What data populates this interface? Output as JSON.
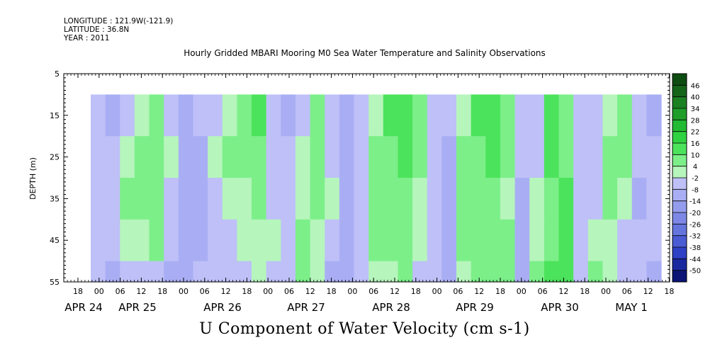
{
  "header": {
    "longitude": "LONGITUDE : 121.9W(-121.9)",
    "latitude": "LATITUDE : 36.8N",
    "year": "YEAR : 2011"
  },
  "chart_data": {
    "type": "heatmap",
    "title": "Hourly Gridded MBARI Mooring M0 Sea Water Temperature and Salinity Observations",
    "xlabel": "U Component of Water Velocity (cm s-1)",
    "ylabel": "DEPTH (m)",
    "y_ticks": [
      "5",
      "15",
      "25",
      "35",
      "45",
      "55"
    ],
    "ylim": [
      5,
      55
    ],
    "y_inverted": true,
    "hour_ticks": [
      "18",
      "00",
      "06",
      "12",
      "18",
      "00",
      "06",
      "12",
      "18",
      "00",
      "06",
      "12",
      "18",
      "00",
      "06",
      "12",
      "18",
      "00",
      "06",
      "12",
      "18",
      "00",
      "06",
      "12",
      "18",
      "00",
      "06",
      "12",
      "18",
      "00",
      "06",
      "12"
    ],
    "date_labels": [
      "APR 24",
      "APR 25",
      "APR 26",
      "APR 27",
      "APR 28",
      "APR 29",
      "APR 30",
      "MAY  1"
    ],
    "data_depth_range": [
      10,
      55
    ],
    "colorbar": {
      "levels": [
        "46",
        "40",
        "34",
        "28",
        "22",
        "16",
        "10",
        "4",
        "-2",
        "-8",
        "-14",
        "-20",
        "-26",
        "-32",
        "-38",
        "-44",
        "-50"
      ],
      "colors": [
        "#0e4d12",
        "#14641a",
        "#1b8022",
        "#1f9e2a",
        "#22bb33",
        "#2fd240",
        "#4ce35c",
        "#7cef89",
        "#b6f5bc",
        "#bec0f7",
        "#a9aef4",
        "#949ced",
        "#7d88e6",
        "#6575de",
        "#4a5cd4",
        "#2e40c4",
        "#1a28a0",
        "#0b1475"
      ]
    },
    "u_velocity_profile_by_column": {
      "description_of_values": "approximate U velocity (cm s-1) at each time column across depth bands 10-20,20-30,30-40,40-50,50-55 m",
      "columns": [
        [
          -8,
          -6,
          -4,
          -6,
          -8
        ],
        [
          -10,
          -8,
          -6,
          -8,
          -10
        ],
        [
          -8,
          -2,
          4,
          0,
          -6
        ],
        [
          2,
          6,
          4,
          -2,
          -8
        ],
        [
          4,
          8,
          6,
          4,
          -6
        ],
        [
          -4,
          -2,
          -6,
          -8,
          -10
        ],
        [
          -12,
          -14,
          -12,
          -10,
          -12
        ],
        [
          -8,
          -10,
          -12,
          -10,
          -8
        ],
        [
          -4,
          -2,
          -6,
          -8,
          -6
        ],
        [
          2,
          4,
          -2,
          -6,
          -8
        ],
        [
          8,
          6,
          2,
          -2,
          -6
        ],
        [
          10,
          6,
          4,
          2,
          -2
        ],
        [
          -6,
          -8,
          -4,
          -2,
          -4
        ],
        [
          -10,
          -8,
          -6,
          -4,
          -6
        ],
        [
          -4,
          -2,
          2,
          6,
          4
        ],
        [
          4,
          8,
          6,
          2,
          -2
        ],
        [
          -6,
          -4,
          -2,
          -6,
          -10
        ],
        [
          -10,
          -12,
          -14,
          -12,
          -10
        ],
        [
          -4,
          -6,
          -8,
          -6,
          -4
        ],
        [
          2,
          4,
          6,
          4,
          2
        ],
        [
          10,
          8,
          6,
          4,
          2
        ],
        [
          14,
          10,
          8,
          8,
          6
        ],
        [
          6,
          4,
          2,
          -2,
          -4
        ],
        [
          -4,
          -6,
          -8,
          -6,
          -4
        ],
        [
          -8,
          -10,
          -12,
          -12,
          -10
        ],
        [
          -2,
          4,
          6,
          6,
          2
        ],
        [
          10,
          8,
          8,
          6,
          6
        ],
        [
          14,
          10,
          8,
          6,
          4
        ],
        [
          6,
          4,
          2,
          4,
          6
        ],
        [
          -6,
          -8,
          -10,
          -12,
          -14
        ],
        [
          -4,
          -6,
          -2,
          2,
          6
        ],
        [
          12,
          10,
          8,
          8,
          10
        ],
        [
          4,
          6,
          10,
          12,
          12
        ],
        [
          -6,
          -4,
          -8,
          -6,
          -8
        ],
        [
          -8,
          -6,
          -4,
          2,
          4
        ],
        [
          2,
          4,
          6,
          2,
          -2
        ],
        [
          8,
          6,
          2,
          -4,
          -8
        ],
        [
          -6,
          -8,
          -10,
          -8,
          -6
        ],
        [
          -10,
          -8,
          -6,
          -8,
          -10
        ]
      ]
    }
  }
}
